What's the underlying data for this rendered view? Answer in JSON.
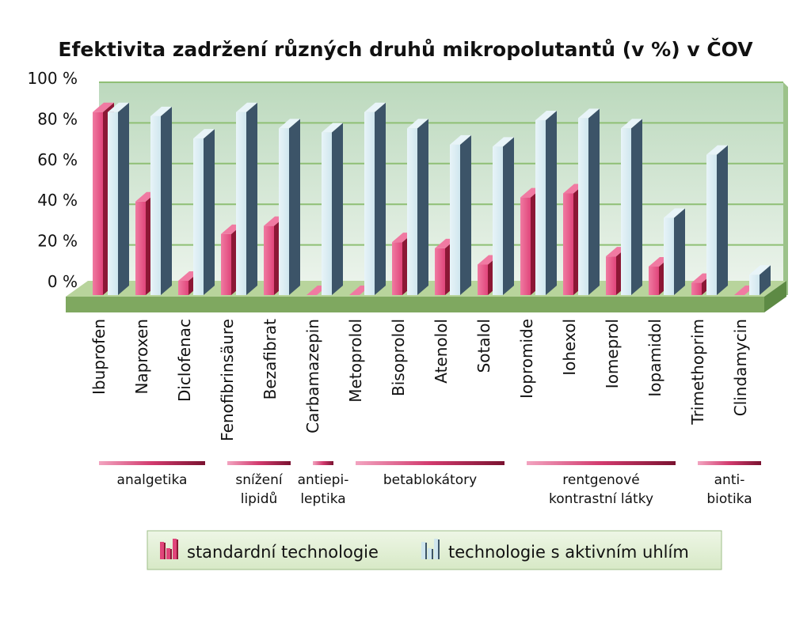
{
  "chart_data": {
    "type": "bar",
    "title": "Efektivita zadržení různých druhů mikropolutantů (v %) v ČOV",
    "ylim": [
      0,
      100
    ],
    "yticks": [
      "0 %",
      "20 %",
      "40 %",
      "60 %",
      "80 %",
      "100 %"
    ],
    "ytick_values": [
      0,
      20,
      40,
      60,
      80,
      100
    ],
    "grid": true,
    "categories": [
      "Ibuprofen",
      "Naproxen",
      "Diclofenac",
      "Fenofibrinsäure",
      "Bezafibrat",
      "Carbamazepin",
      "Metoprolol",
      "Bisoprolol",
      "Atenolol",
      "Sotalol",
      "Iopromide",
      "Iohexol",
      "Iomeprol",
      "Iopamidol",
      "Trimethoprim",
      "Clindamycin"
    ],
    "series": [
      {
        "name": "standardní technologie",
        "values": [
          90,
          46,
          7,
          30,
          34,
          0,
          0,
          26,
          23,
          15,
          48,
          50,
          19,
          14,
          6,
          0
        ]
      },
      {
        "name": "technologie s aktivním uhlím",
        "values": [
          90,
          88,
          77,
          90,
          82,
          80,
          90,
          82,
          74,
          73,
          86,
          87,
          82,
          38,
          69,
          10
        ]
      }
    ],
    "groups": [
      {
        "label": [
          "analgetika"
        ],
        "from": 0,
        "to": 2
      },
      {
        "label": [
          "snížení",
          "lipidů"
        ],
        "from": 3,
        "to": 4
      },
      {
        "label": [
          "antiepi-",
          "leptika"
        ],
        "from": 5,
        "to": 5
      },
      {
        "label": [
          "betablokátory"
        ],
        "from": 6,
        "to": 9
      },
      {
        "label": [
          "rentgenové",
          "kontrastní látky"
        ],
        "from": 10,
        "to": 13
      },
      {
        "label": [
          "anti-",
          "biotika"
        ],
        "from": 14,
        "to": 15
      }
    ],
    "legend_position": "bottom",
    "colors": {
      "standard_front": "#e0457a",
      "standard_side": "#8c1735",
      "standard_top": "#f07aa2",
      "carbon_front": "#cfe6ee",
      "carbon_side": "#3c5468",
      "carbon_top": "#e8f4f8",
      "plot_bg_top": "#bcd9bd",
      "plot_bg_bottom": "#eef5ee",
      "floor_front": "#7fa860",
      "floor_top": "#b8d49c",
      "gridline": "#8fbf75"
    }
  }
}
